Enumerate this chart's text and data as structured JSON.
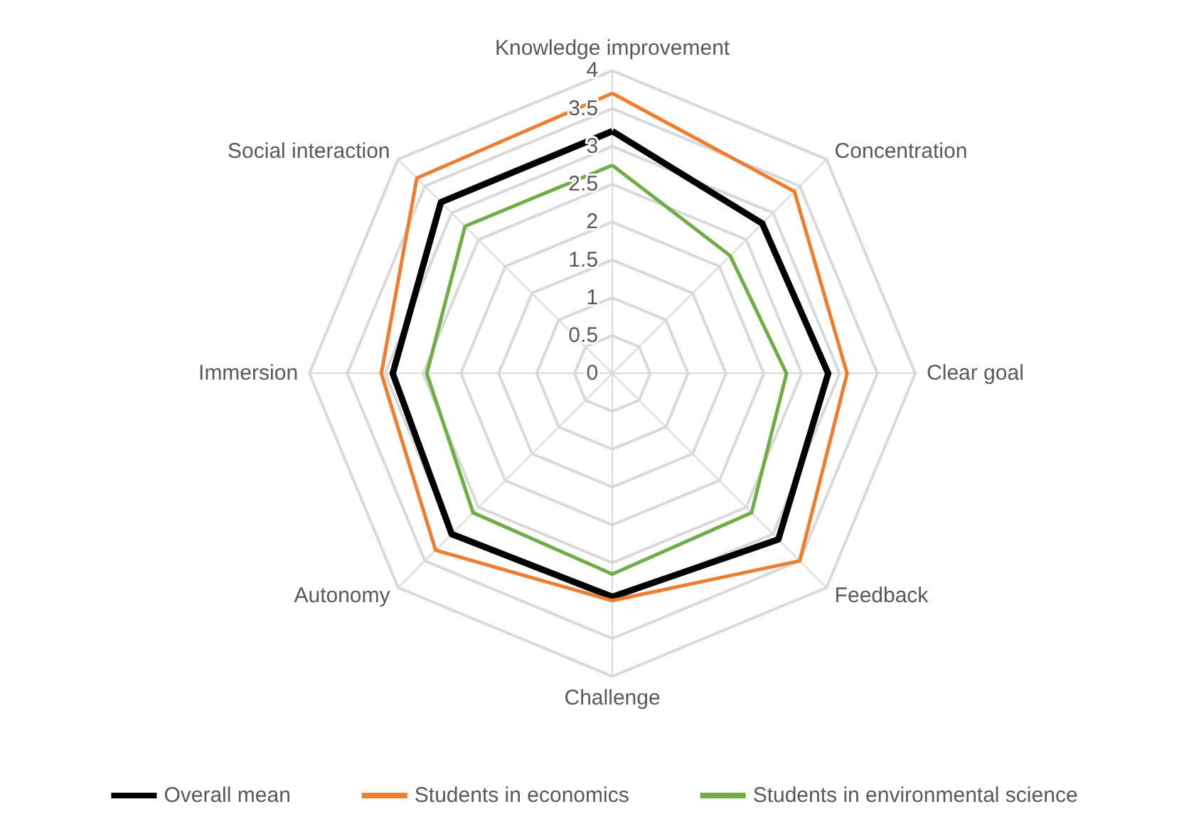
{
  "chart_data": {
    "type": "radar",
    "categories": [
      "Knowledge improvement",
      "Concentration",
      "Clear goal",
      "Feedback",
      "Challenge",
      "Autonomy",
      "Immersion",
      "Social interaction"
    ],
    "series": [
      {
        "name": "Overall mean",
        "color": "#000000",
        "values": [
          3.2,
          2.8,
          2.85,
          3.1,
          2.95,
          3.0,
          2.9,
          3.2
        ]
      },
      {
        "name": "Students in economics",
        "color": "#ed7d31",
        "values": [
          3.7,
          3.4,
          3.1,
          3.5,
          3.0,
          3.3,
          3.05,
          3.65
        ]
      },
      {
        "name": "Students in environmental science",
        "color": "#70ad47",
        "values": [
          2.75,
          2.2,
          2.3,
          2.6,
          2.65,
          2.6,
          2.45,
          2.75
        ]
      }
    ],
    "ylim": [
      0,
      4
    ],
    "yticks": [
      0,
      0.5,
      1,
      1.5,
      2,
      2.5,
      3,
      3.5,
      4
    ],
    "grid": true,
    "legend": "bottom",
    "marker": "none",
    "line_style": "solid"
  }
}
